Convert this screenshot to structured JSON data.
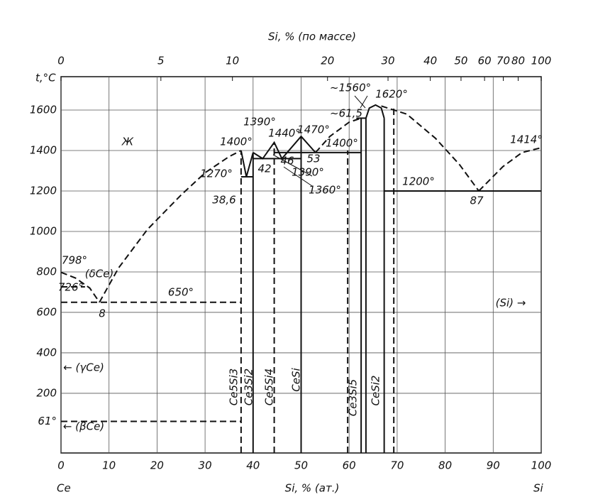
{
  "chart_data": {
    "type": "phase-diagram",
    "title": "Si, % (по массе)",
    "x_label": "Si, % (ат.)",
    "x_start_label": "Ce",
    "x_end_label": "Si",
    "y_label": "t,°C",
    "xlim": [
      0,
      100
    ],
    "ylim": [
      -95,
      1765
    ],
    "xticks": [
      0,
      10,
      20,
      30,
      40,
      50,
      60,
      70,
      80,
      90,
      100
    ],
    "x2ticks": [
      0,
      {
        "value": 20.8,
        "label": "5"
      },
      {
        "value": 35.7,
        "label": "10"
      },
      {
        "value": 55.5,
        "label": "20"
      },
      {
        "value": 68.1,
        "label": "30"
      },
      {
        "value": 76.9,
        "label": "40"
      },
      {
        "value": 83.3,
        "label": "50"
      },
      {
        "value": 88.2,
        "label": "60"
      },
      {
        "value": 92.1,
        "label": "70"
      },
      {
        "value": 95.2,
        "label": "80"
      },
      100
    ],
    "yticks": [
      {
        "value": 61,
        "label": "61°"
      },
      200,
      400,
      600,
      800,
      1000,
      1200,
      1400,
      1600
    ],
    "grid": true,
    "curves": [
      {
        "x": [
          0,
          3,
          6,
          8
        ],
        "y": [
          798,
          770,
          720,
          650
        ],
        "dashed": true
      },
      {
        "x": [
          0,
          5
        ],
        "y": [
          726,
          726
        ],
        "dashed": true
      },
      {
        "x": [
          0,
          37.5
        ],
        "y": [
          650,
          650
        ],
        "dashed": true
      },
      {
        "x": [
          8,
          12,
          18,
          25,
          30,
          35,
          37.5
        ],
        "y": [
          650,
          820,
          1010,
          1180,
          1290,
          1370,
          1400
        ],
        "dashed": true
      },
      {
        "x": [
          37.5,
          38.6,
          40
        ],
        "y": [
          1400,
          1270,
          1390
        ],
        "dashed": false
      },
      {
        "x": [
          37.5,
          40
        ],
        "y": [
          1270,
          1270
        ],
        "dashed": false
      },
      {
        "x": [
          40,
          42,
          44.4,
          46,
          50,
          53
        ],
        "y": [
          1390,
          1360,
          1440,
          1360,
          1470,
          1390
        ],
        "dashed": false
      },
      {
        "x": [
          40,
          50
        ],
        "y": [
          1360,
          1360
        ],
        "dashed": false
      },
      {
        "x": [
          44.4,
          62.5
        ],
        "y": [
          1390,
          1390
        ],
        "dashed": false
      },
      {
        "x": [
          53,
          56,
          60,
          62.5
        ],
        "y": [
          1390,
          1470,
          1540,
          1560
        ],
        "dashed": true
      },
      {
        "x": [
          63.5,
          64.2,
          65.5,
          66.7,
          67.3
        ],
        "y": [
          1560,
          1610,
          1625,
          1610,
          1560
        ],
        "dashed": false
      },
      {
        "x": [
          61.5,
          63.5
        ],
        "y": [
          1560,
          1560
        ],
        "dashed": false
      },
      {
        "x": [
          66.7,
          72,
          78,
          83,
          87
        ],
        "y": [
          1620,
          1580,
          1460,
          1330,
          1200
        ],
        "dashed": true
      },
      {
        "x": [
          87,
          92,
          96,
          100
        ],
        "y": [
          1200,
          1320,
          1390,
          1414
        ],
        "dashed": true
      },
      {
        "x": [
          67.3,
          100
        ],
        "y": [
          1200,
          1200
        ],
        "dashed": false
      },
      {
        "x": [
          0,
          37.5
        ],
        "y": [
          61,
          61
        ],
        "dashed": true
      },
      {
        "x": [
          37.5,
          37.5
        ],
        "y": [
          -95,
          1400
        ],
        "dashed": true
      },
      {
        "x": [
          40,
          40
        ],
        "y": [
          -95,
          1390
        ],
        "dashed": false
      },
      {
        "x": [
          44.4,
          44.4
        ],
        "y": [
          -95,
          1440
        ],
        "dashed": true
      },
      {
        "x": [
          50,
          50
        ],
        "y": [
          -95,
          1470
        ],
        "dashed": false
      },
      {
        "x": [
          59.7,
          59.7
        ],
        "y": [
          -95,
          1400
        ],
        "dashed": true
      },
      {
        "x": [
          62.5,
          62.5
        ],
        "y": [
          -95,
          1560
        ],
        "dashed": false
      },
      {
        "x": [
          63.5,
          63.5
        ],
        "y": [
          -95,
          1560
        ],
        "dashed": false
      },
      {
        "x": [
          67.3,
          67.3
        ],
        "y": [
          -95,
          1560
        ],
        "dashed": false
      },
      {
        "x": [
          69.3,
          69.3
        ],
        "y": [
          -95,
          1620
        ],
        "dashed": true
      }
    ],
    "annotations": [
      "Ж",
      "1400°",
      "1390°",
      "1440°",
      "1470°",
      "~1560°",
      "1620°",
      "~61,5",
      "1400°",
      "53",
      "1390°",
      "1360°",
      "46",
      "42",
      "1270°",
      "38,6",
      "1200°",
      "87",
      "1414°",
      "798°",
      "(δCe)",
      "726°",
      "650°",
      "8",
      "(Si) →",
      "← (γCe)",
      "← (βCe)",
      "Ce5Si3",
      "Ce3Si2",
      "Ce5Si4",
      "CeSi",
      "Ce3Si5",
      "CeSi2"
    ]
  }
}
